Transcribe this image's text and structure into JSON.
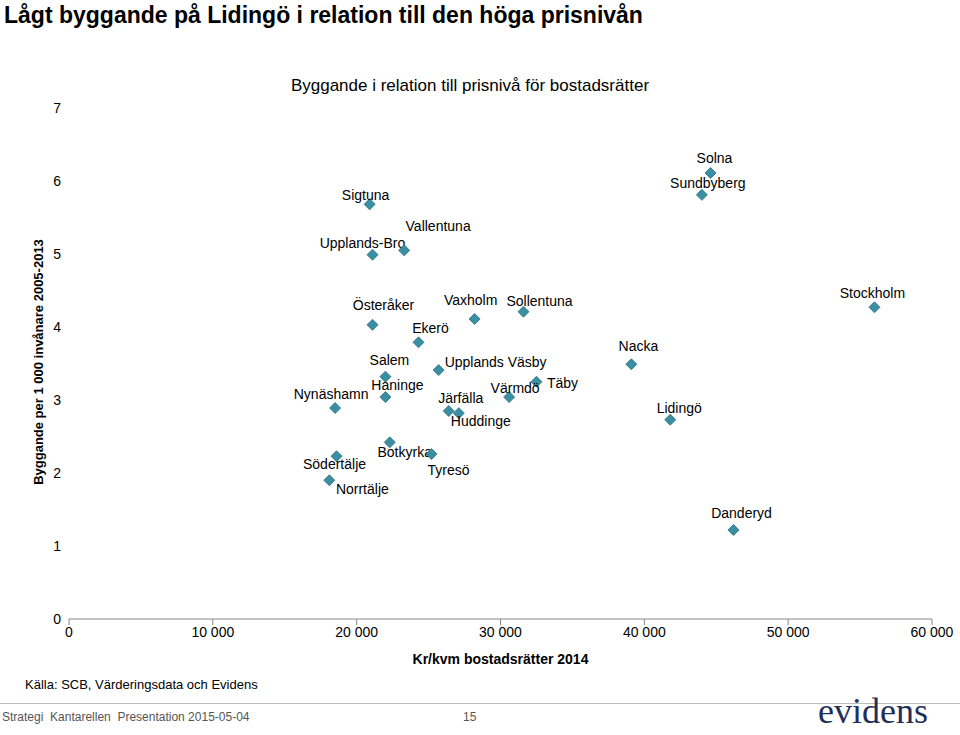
{
  "header": {
    "title": "Lågt byggande på Lidingö i relation till den höga prisnivån"
  },
  "chart_data": {
    "type": "scatter",
    "title": "Byggande i relation till prisnivå för bostadsrätter",
    "x_label": "Kr/kvm bostadsrätter 2014",
    "y_label": "Byggande per 1 000 invånare 2005-2013",
    "color": "#3a8fa3",
    "marker": "diamond",
    "grid": false,
    "xlim": [
      0,
      60000
    ],
    "xticks": [
      0,
      {
        "value": 10000,
        "label": "10 000"
      },
      {
        "value": 20000,
        "label": "20 000"
      },
      {
        "value": 30000,
        "label": "30 000"
      },
      {
        "value": 40000,
        "label": "40 000"
      },
      {
        "value": 50000,
        "label": "50 000"
      },
      {
        "value": 60000,
        "label": "60 000"
      }
    ],
    "ylim": [
      0,
      7
    ],
    "yticks": [
      0,
      1,
      2,
      3,
      4,
      5,
      6,
      7
    ],
    "points": [
      {
        "label": "Solna",
        "x": 44600,
        "y": 6.11
      },
      {
        "label": "Sundbyberg",
        "x": 44000,
        "y": 5.81
      },
      {
        "label": "Sigtuna",
        "x": 20900,
        "y": 5.68
      },
      {
        "label": "Upplands-Bro",
        "x": 21100,
        "y": 4.99
      },
      {
        "label": "Vallentuna",
        "x": 23300,
        "y": 5.05
      },
      {
        "label": "Österåker",
        "x": 21100,
        "y": 4.03
      },
      {
        "label": "Vaxholm",
        "x": 28200,
        "y": 4.11
      },
      {
        "label": "Sollentuna",
        "x": 31600,
        "y": 4.21
      },
      {
        "label": "Stockholm",
        "x": 56000,
        "y": 4.27
      },
      {
        "label": "Ekerö",
        "x": 24300,
        "y": 3.79
      },
      {
        "label": "Nacka",
        "x": 39100,
        "y": 3.49
      },
      {
        "label": "Salem",
        "x": 22000,
        "y": 3.32
      },
      {
        "label": "Upplands Väsby",
        "x": 25700,
        "y": 3.41
      },
      {
        "label": "Täby",
        "x": 32500,
        "y": 3.25
      },
      {
        "label": "Värmdö",
        "x": 30600,
        "y": 3.04
      },
      {
        "label": "Haninge",
        "x": 22000,
        "y": 3.04
      },
      {
        "label": "Nynäshamn",
        "x": 18500,
        "y": 2.89
      },
      {
        "label": "Järfälla",
        "x": 26400,
        "y": 2.85
      },
      {
        "label": "Huddinge",
        "x": 27100,
        "y": 2.82
      },
      {
        "label": "Lidingö",
        "x": 41800,
        "y": 2.73
      },
      {
        "label": "Botkyrka",
        "x": 22300,
        "y": 2.42
      },
      {
        "label": "Tyresö",
        "x": 25200,
        "y": 2.26
      },
      {
        "label": "Södertälje",
        "x": 18600,
        "y": 2.23
      },
      {
        "label": "Norrtälje",
        "x": 18100,
        "y": 1.9
      },
      {
        "label": "Danderyd",
        "x": 46200,
        "y": 1.22
      }
    ]
  },
  "footer": {
    "source": "Källa: SCB, Värderingsdata och Evidens",
    "presentation": "Strategi  Kantarellen  Presentation 2015-05-04",
    "page": 15,
    "logo": "evidens"
  }
}
